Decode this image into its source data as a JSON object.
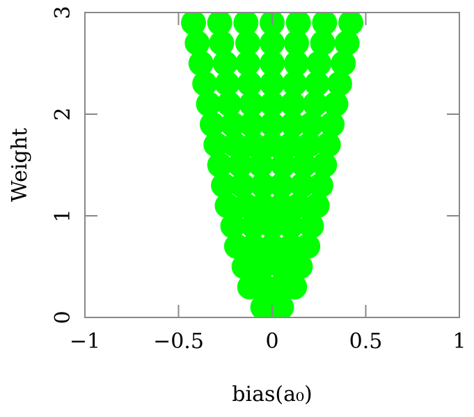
{
  "chart_data": {
    "type": "scatter",
    "color": "#00ff00",
    "xlabel": "bias(a₀)",
    "ylabel": "Weight",
    "xlim": [
      -1,
      1
    ],
    "ylim": [
      0,
      3
    ],
    "xticks": [
      {
        "value": -1,
        "label": "−1"
      },
      {
        "value": -0.5,
        "label": "−0.5"
      },
      0,
      0.5,
      1
    ],
    "yticks": [
      0,
      1,
      2,
      3
    ],
    "x": [
      -0.05,
      0,
      0.05,
      -0.12,
      -0.04,
      0.04,
      0.12,
      -0.15,
      -0.05,
      0.05,
      0.15,
      -0.19,
      -0.1,
      0,
      0.1,
      0.19,
      -0.21,
      -0.1,
      0,
      0.1,
      0.21,
      -0.24,
      -0.14,
      -0.05,
      0.05,
      0.14,
      0.24,
      -0.26,
      -0.16,
      -0.05,
      0.05,
      0.16,
      0.26,
      -0.28,
      -0.17,
      -0.06,
      0.06,
      0.17,
      0.28,
      -0.3,
      -0.2,
      -0.1,
      0,
      0.1,
      0.2,
      0.3,
      -0.32,
      -0.21,
      -0.11,
      0,
      0.11,
      0.21,
      0.32,
      -0.34,
      -0.23,
      -0.11,
      0,
      0.11,
      0.23,
      0.34,
      -0.36,
      -0.24,
      -0.12,
      0,
      0.12,
      0.24,
      0.36,
      -0.38,
      -0.25,
      -0.13,
      0,
      0.13,
      0.25,
      0.38,
      -0.4,
      -0.27,
      -0.13,
      0,
      0.13,
      0.27,
      0.4,
      -0.42,
      -0.28,
      -0.14,
      0,
      0.14,
      0.28,
      0.42
    ],
    "y": [
      0.1,
      0.1,
      0.1,
      0.3,
      0.3,
      0.3,
      0.3,
      0.5,
      0.5,
      0.5,
      0.5,
      0.7,
      0.7,
      0.7,
      0.7,
      0.7,
      0.9,
      0.9,
      0.9,
      0.9,
      0.9,
      1.1,
      1.1,
      1.1,
      1.1,
      1.1,
      1.1,
      1.3,
      1.3,
      1.3,
      1.3,
      1.3,
      1.3,
      1.5,
      1.5,
      1.5,
      1.5,
      1.5,
      1.5,
      1.7,
      1.7,
      1.7,
      1.7,
      1.7,
      1.7,
      1.7,
      1.9,
      1.9,
      1.9,
      1.9,
      1.9,
      1.9,
      1.9,
      2.1,
      2.1,
      2.1,
      2.1,
      2.1,
      2.1,
      2.1,
      2.3,
      2.3,
      2.3,
      2.3,
      2.3,
      2.3,
      2.3,
      2.5,
      2.5,
      2.5,
      2.5,
      2.5,
      2.5,
      2.5,
      2.7,
      2.7,
      2.7,
      2.7,
      2.7,
      2.7,
      2.7,
      2.9,
      2.9,
      2.9,
      2.9,
      2.9,
      2.9,
      2.9
    ]
  }
}
